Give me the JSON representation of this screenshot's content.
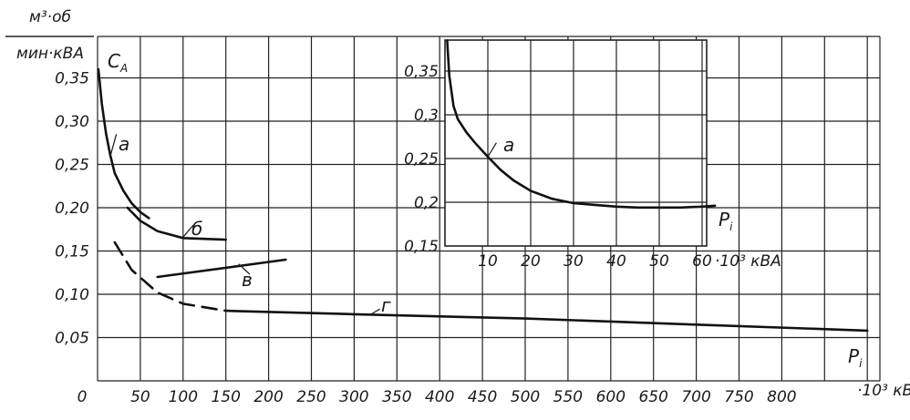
{
  "chart_data": [
    {
      "type": "line",
      "title": "",
      "ylabel": "C_A",
      "y_unit": "м³·об / мин·кВА",
      "xlabel": "P_i",
      "x_unit": "·10³ кВА",
      "x_tick_labels": [
        "0",
        "50",
        "100",
        "150",
        "200",
        "250",
        "300",
        "350",
        "400",
        "450",
        "500",
        "550",
        "600",
        "650",
        "700",
        "750",
        "800"
      ],
      "y_tick_labels": [
        "0,05",
        "0,10",
        "0,15",
        "0,20",
        "0,25",
        "0,30",
        "0,35"
      ],
      "xlim": [
        0,
        900
      ],
      "ylim": [
        0,
        0.37
      ],
      "grid": true,
      "series": [
        {
          "name": "а",
          "style": "solid",
          "x": [
            1,
            5,
            10,
            15,
            20,
            30,
            40,
            50,
            60
          ],
          "y": [
            0.36,
            0.32,
            0.285,
            0.26,
            0.24,
            0.22,
            0.205,
            0.195,
            0.188
          ]
        },
        {
          "name": "б",
          "style": "solid",
          "x": [
            35,
            50,
            70,
            100,
            150
          ],
          "y": [
            0.2,
            0.185,
            0.173,
            0.165,
            0.163
          ]
        },
        {
          "name": "в",
          "style": "solid",
          "x": [
            70,
            220
          ],
          "y": [
            0.12,
            0.14
          ]
        },
        {
          "name": "г",
          "style": "dashed",
          "x": [
            20,
            40,
            70,
            100,
            150
          ],
          "y": [
            0.16,
            0.128,
            0.102,
            0.089,
            0.081
          ]
        },
        {
          "name": "г",
          "style": "solid",
          "x": [
            150,
            300,
            500,
            700,
            900
          ],
          "y": [
            0.081,
            0.077,
            0.072,
            0.065,
            0.058
          ]
        }
      ]
    },
    {
      "type": "line",
      "title": "",
      "xlabel": "P_i",
      "x_unit": "·10³ кВА",
      "x_tick_labels": [
        "10",
        "20",
        "30",
        "40",
        "50",
        "60"
      ],
      "y_tick_labels": [
        "0,15",
        "0,2",
        "0,25",
        "0,3",
        "0,35"
      ],
      "xlim": [
        0,
        72
      ],
      "ylim": [
        0.15,
        0.39
      ],
      "grid": true,
      "series": [
        {
          "name": "а",
          "style": "solid",
          "x": [
            0.5,
            1,
            2,
            3,
            5,
            7,
            10,
            13,
            16,
            20,
            25,
            30,
            35,
            40,
            45,
            50,
            55,
            60,
            63
          ],
          "y": [
            0.385,
            0.345,
            0.31,
            0.295,
            0.28,
            0.268,
            0.252,
            0.237,
            0.225,
            0.213,
            0.204,
            0.199,
            0.197,
            0.195,
            0.194,
            0.194,
            0.194,
            0.195,
            0.196
          ]
        }
      ]
    }
  ]
}
